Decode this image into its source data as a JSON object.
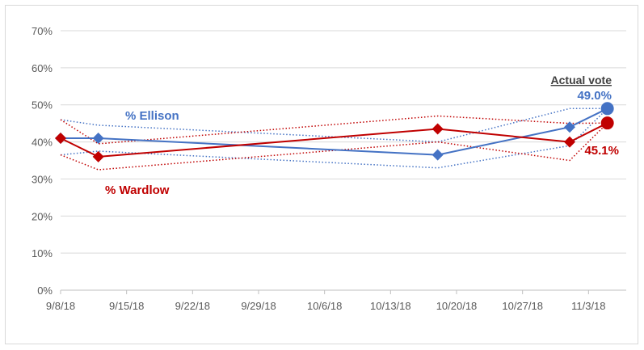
{
  "chart_data": {
    "type": "line",
    "x_ticks": [
      "9/8/18",
      "9/15/18",
      "9/22/18",
      "9/29/18",
      "10/6/18",
      "10/13/18",
      "10/20/18",
      "10/27/18",
      "11/3/18"
    ],
    "y_ticks": [
      "0%",
      "10%",
      "20%",
      "30%",
      "40%",
      "50%",
      "60%",
      "70%"
    ],
    "ylim": [
      0,
      70
    ],
    "xlim": [
      "2018-09-08",
      "2018-11-07"
    ],
    "grid": true,
    "series": [
      {
        "name": "% Ellison",
        "color": "#4472c4",
        "points": [
          {
            "x": "2018-09-08",
            "y": 41.0
          },
          {
            "x": "2018-09-12",
            "y": 41.0
          },
          {
            "x": "2018-10-18",
            "y": 36.5
          },
          {
            "x": "2018-11-01",
            "y": 44.0
          }
        ],
        "upper": [
          {
            "x": "2018-09-08",
            "y": 46.0
          },
          {
            "x": "2018-09-12",
            "y": 44.5
          },
          {
            "x": "2018-10-18",
            "y": 40.0
          },
          {
            "x": "2018-11-01",
            "y": 49.0
          },
          {
            "x": "2018-11-05",
            "y": 49.0
          }
        ],
        "lower": [
          {
            "x": "2018-09-08",
            "y": 36.5
          },
          {
            "x": "2018-09-12",
            "y": 37.5
          },
          {
            "x": "2018-10-18",
            "y": 33.0
          },
          {
            "x": "2018-11-01",
            "y": 39.0
          },
          {
            "x": "2018-11-05",
            "y": 49.0
          }
        ],
        "actual": {
          "x": "2018-11-05",
          "y": 49.0,
          "label": "49.0%"
        }
      },
      {
        "name": "% Wardlow",
        "color": "#c00000",
        "points": [
          {
            "x": "2018-09-08",
            "y": 41.0
          },
          {
            "x": "2018-09-12",
            "y": 36.0
          },
          {
            "x": "2018-10-18",
            "y": 43.5
          },
          {
            "x": "2018-11-01",
            "y": 40.0
          }
        ],
        "upper": [
          {
            "x": "2018-09-08",
            "y": 46.0
          },
          {
            "x": "2018-09-12",
            "y": 39.5
          },
          {
            "x": "2018-10-18",
            "y": 47.0
          },
          {
            "x": "2018-11-01",
            "y": 45.0
          },
          {
            "x": "2018-11-05",
            "y": 45.1
          }
        ],
        "lower": [
          {
            "x": "2018-09-08",
            "y": 36.5
          },
          {
            "x": "2018-09-12",
            "y": 32.5
          },
          {
            "x": "2018-10-18",
            "y": 40.0
          },
          {
            "x": "2018-11-01",
            "y": 35.0
          },
          {
            "x": "2018-11-05",
            "y": 45.1
          }
        ],
        "actual": {
          "x": "2018-11-05",
          "y": 45.1,
          "label": "45.1%"
        }
      }
    ],
    "actual_label": "Actual vote"
  }
}
